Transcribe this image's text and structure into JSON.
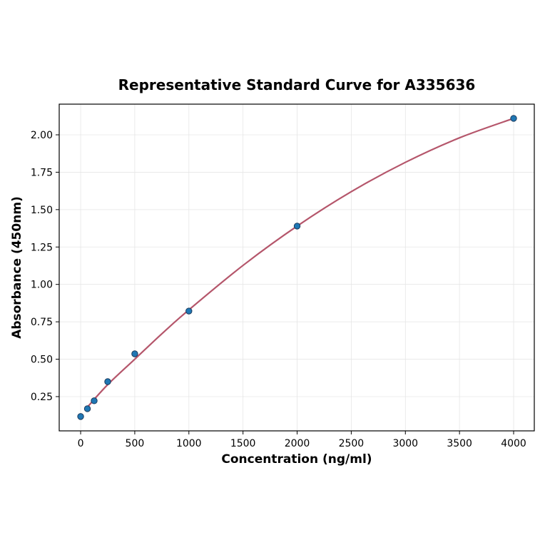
{
  "chart_data": {
    "type": "scatter",
    "title": "Representative Standard Curve for A335636",
    "xlabel": "Concentration (ng/ml)",
    "ylabel": "Absorbance (450nm)",
    "xlim": [
      -198,
      4191
    ],
    "ylim": [
      0.021,
      2.205
    ],
    "xticks": [
      0,
      500,
      1000,
      1500,
      2000,
      2500,
      3000,
      3500,
      4000
    ],
    "xtick_labels": [
      "0",
      "500",
      "1000",
      "1500",
      "2000",
      "2500",
      "3000",
      "3500",
      "4000"
    ],
    "yticks": [
      0.25,
      0.5,
      0.75,
      1.0,
      1.25,
      1.5,
      1.75,
      2.0
    ],
    "ytick_labels": [
      "0.25",
      "0.50",
      "0.75",
      "1.00",
      "1.25",
      "1.50",
      "1.75",
      "2.00"
    ],
    "grid": true,
    "points": {
      "x": [
        0,
        62.5,
        125,
        250,
        500,
        1000,
        2000,
        4000
      ],
      "y": [
        0.117,
        0.169,
        0.222,
        0.35,
        0.536,
        0.822,
        1.39,
        2.11
      ]
    },
    "fit_curve": {
      "x": [
        62.5,
        250,
        500,
        750,
        1000,
        1500,
        2000,
        2500,
        3000,
        3500,
        4000
      ],
      "y": [
        0.18,
        0.33,
        0.5,
        0.67,
        0.83,
        1.127,
        1.39,
        1.62,
        1.816,
        1.98,
        2.11
      ]
    },
    "colors": {
      "points": "#1f77b4",
      "point_edge": "#1a3a5c",
      "curve": "#b5566b"
    }
  }
}
